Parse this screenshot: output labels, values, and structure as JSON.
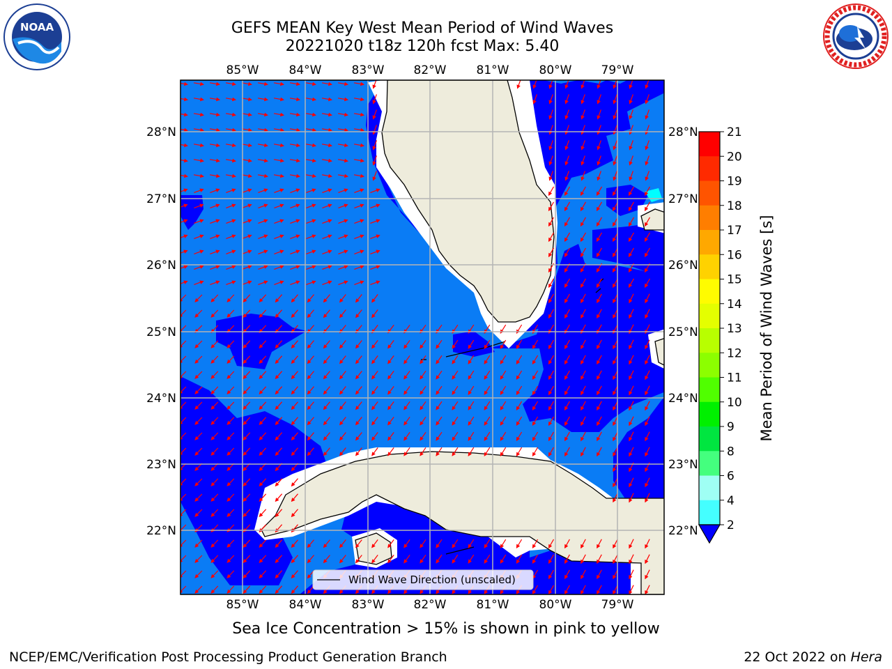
{
  "header": {
    "title_line1": "GEFS MEAN Key West Mean Period of Wind Waves",
    "title_line2": "20221020 t18z 120h fcst   Max: 5.40"
  },
  "logos": {
    "noaa": {
      "text": "NOAA",
      "ring_text": "NATIONAL OCEANIC AND ATMOSPHERIC ADMINISTRATION · U.S. DEPARTMENT OF COMMERCE"
    },
    "nws": {
      "ring_text": "NATIONAL WEATHER SERVICE"
    }
  },
  "map": {
    "lon_labels": [
      "85°W",
      "84°W",
      "83°W",
      "82°W",
      "81°W",
      "80°W",
      "79°W"
    ],
    "lat_labels": [
      "28°N",
      "27°N",
      "26°N",
      "25°N",
      "24°N",
      "23°N",
      "22°N"
    ],
    "legend_label": "Wind Wave Direction (unscaled)",
    "colors": {
      "ocean_light": "#0a7cf5",
      "ocean_dark": "#0000ff",
      "cyan": "#00ffff",
      "land": "#eeecdc",
      "arrow": "#ff0000",
      "grid": "#b4b4b4"
    }
  },
  "colorbar": {
    "label": "Mean Period of Wind Waves [s]",
    "ticks": [
      "21",
      "20",
      "19",
      "18",
      "17",
      "16",
      "15",
      "14",
      "13",
      "12",
      "11",
      "10",
      "9",
      "8",
      "6",
      "4",
      "2"
    ],
    "colors": [
      "#ff0000",
      "#ff2a00",
      "#ff5400",
      "#ff7e00",
      "#ffa800",
      "#ffd200",
      "#fffc00",
      "#e4ff00",
      "#b8ff00",
      "#8cff00",
      "#50ff00",
      "#00f000",
      "#00e640",
      "#44ff7e",
      "#9ffff4",
      "#44ffff",
      "#00ffff",
      "#0a7cf5"
    ],
    "extend_color": "#0000ff"
  },
  "notes": {
    "sea_ice": "Sea Ice Concentration > 15% is shown in pink to yellow",
    "credit": "NCEP/EMC/Verification Post Processing Product Generation Branch",
    "date": "22 Oct 2022 on ",
    "machine": "Hera"
  }
}
